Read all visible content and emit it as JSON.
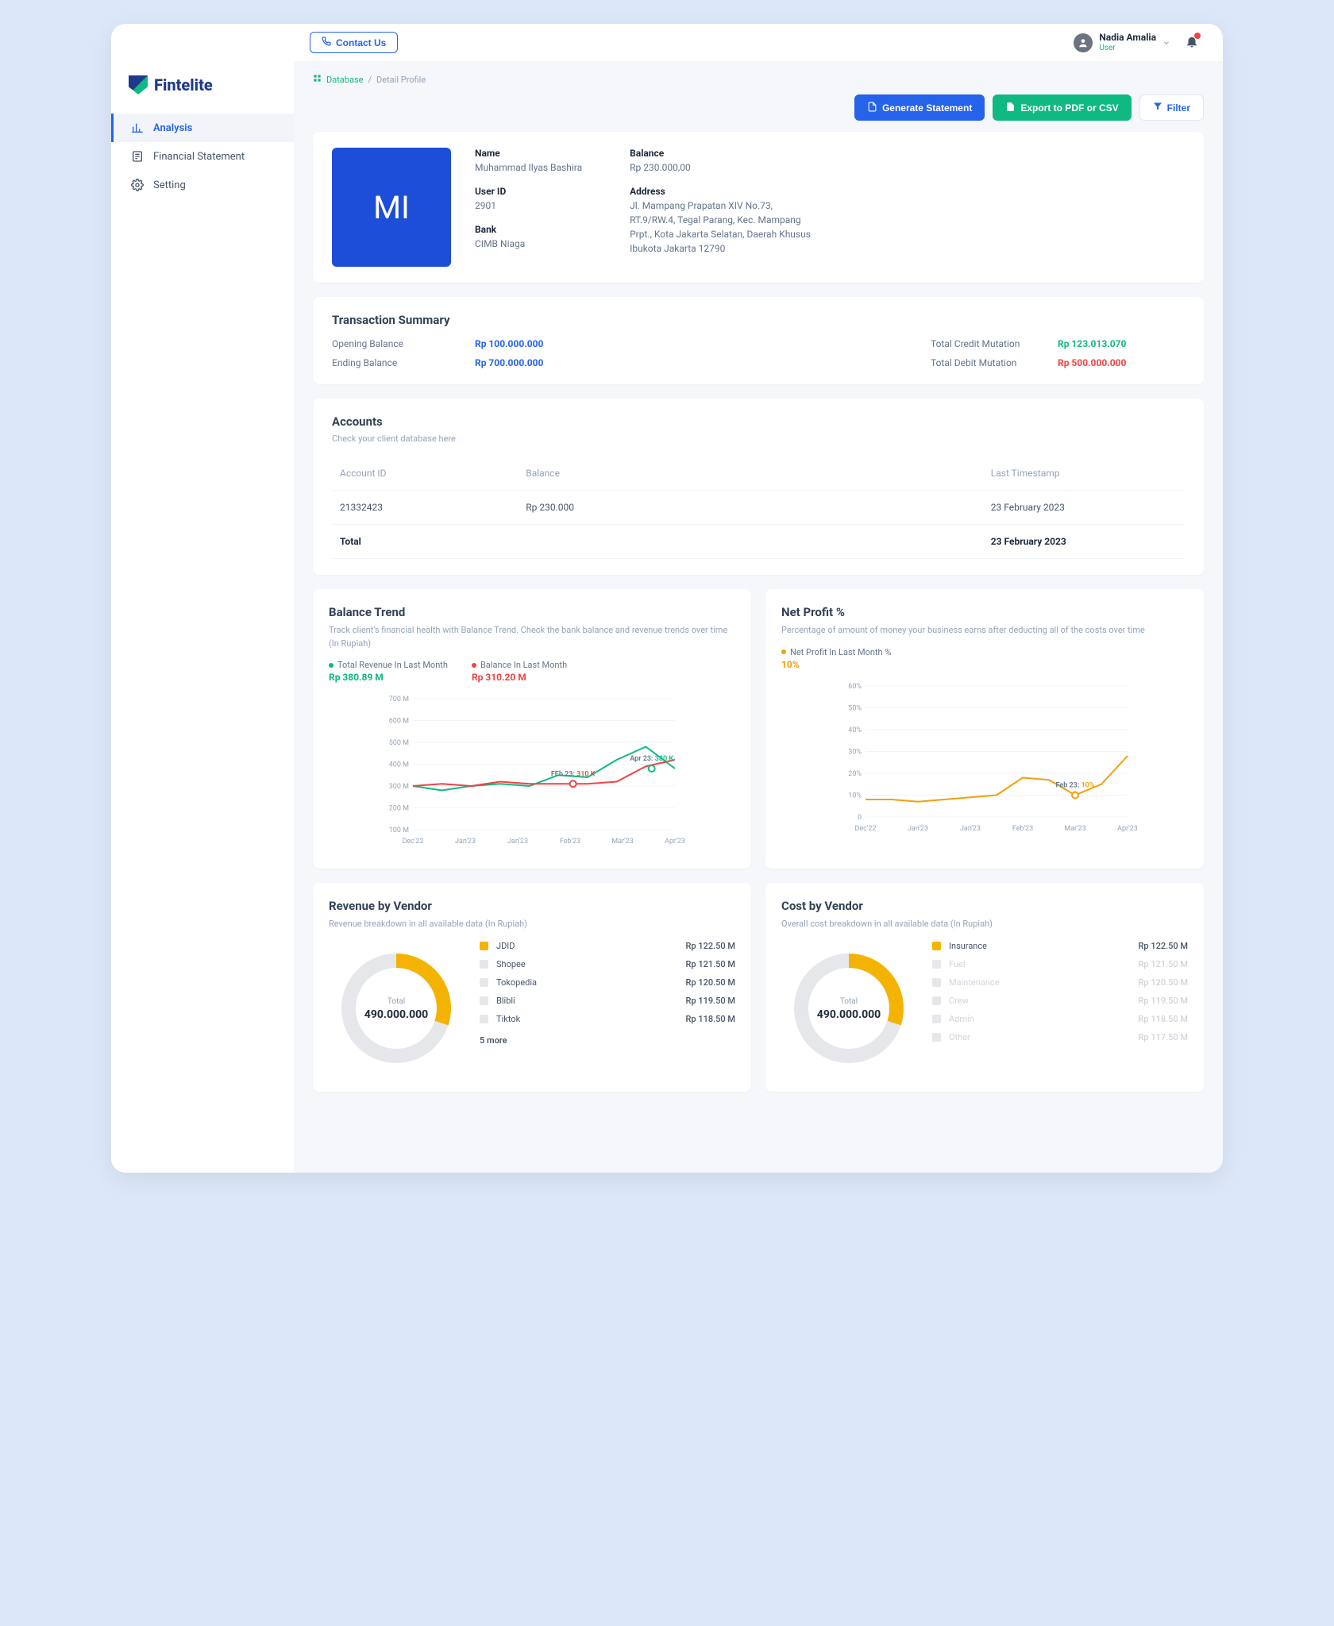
{
  "topbar": {
    "contact_label": "Contact Us",
    "user_name": "Nadia Amalia",
    "user_role": "User"
  },
  "logo_text": "Fintelite",
  "nav": [
    {
      "label": "Analysis",
      "active": true
    },
    {
      "label": "Financial Statement",
      "active": false
    },
    {
      "label": "Setting",
      "active": false
    }
  ],
  "breadcrumb": {
    "root": "Database",
    "current": "Detail Profile"
  },
  "actions": {
    "generate": "Generate Statement",
    "export": "Export to PDF or CSV",
    "filter": "Filter"
  },
  "profile": {
    "initials": "MI",
    "name_label": "Name",
    "name": "Muhammad Ilyas Bashira",
    "userid_label": "User ID",
    "userid": "2901",
    "bank_label": "Bank",
    "bank": "CIMB Niaga",
    "balance_label": "Balance",
    "balance": "Rp 230.000,00",
    "address_label": "Address",
    "address": "Jl. Mampang Prapatan XIV No.73, RT.9/RW.4, Tegal Parang, Kec. Mampang Prpt., Kota Jakarta Selatan, Daerah Khusus Ibukota Jakarta 12790"
  },
  "summary": {
    "title": "Transaction Summary",
    "rows": {
      "opening_label": "Opening Balance",
      "opening_val": "Rp 100.000.000",
      "ending_label": "Ending Balance",
      "ending_val": "Rp 700.000.000",
      "credit_label": "Total Credit Mutation",
      "credit_val": "Rp 123.013.070",
      "debit_label": "Total Debit Mutation",
      "debit_val": "Rp 500.000.000"
    }
  },
  "accounts": {
    "title": "Accounts",
    "subtitle": "Check your client database here",
    "cols": {
      "c1": "Account ID",
      "c2": "Balance",
      "c3": "Last Timestamp"
    },
    "rows": [
      {
        "id": "21332423",
        "balance": "Rp 230.000",
        "ts": "23 February 2023"
      }
    ],
    "total_label": "Total",
    "total_ts": "23 February 2023"
  },
  "balance_trend": {
    "title": "Balance Trend",
    "desc": "Track client's financial health with Balance Trend. Check the bank balance and revenue trends over time (In Rupiah)",
    "legend1_label": "Total Revenue In Last Month",
    "legend1_val": "Rp 380.89 M",
    "legend1_color": "#10b981",
    "legend2_label": "Balance In Last Month",
    "legend2_val": "Rp 310.20 M",
    "legend2_color": "#ef4444",
    "x_labels": [
      "Dec'22",
      "Jan'23",
      "Jan'23",
      "Feb'23",
      "Mar'23",
      "Apr'23"
    ],
    "y_labels": [
      "100 M",
      "200 M",
      "300 M",
      "400 M",
      "500 M",
      "600 M",
      "700 M"
    ],
    "y_min": 100,
    "y_max": 700,
    "series1": [
      300,
      280,
      300,
      310,
      300,
      350,
      340,
      420,
      480,
      380
    ],
    "series2": [
      300,
      310,
      300,
      320,
      310,
      310,
      310,
      320,
      390,
      420
    ],
    "annot1": {
      "text": "FEb 23:",
      "val": " 310 K",
      "color": "#ef4444",
      "xi": 5.5,
      "y": 310
    },
    "annot2": {
      "text": "Apr 23:",
      "val": " 380 K",
      "color": "#10b981",
      "xi": 8.2,
      "y": 380
    }
  },
  "net_profit": {
    "title": "Net Profit %",
    "desc": "Percentage of amount of money your business earns after deducting all of the costs over time",
    "legend_label": "Net Profit In Last Month %",
    "legend_val": "10%",
    "legend_color": "#f59e0b",
    "x_labels": [
      "Dec'22",
      "Jan'23",
      "Jan'23",
      "Feb'23",
      "Mar'23",
      "Apr'23"
    ],
    "y_labels": [
      "0",
      "10%",
      "20%",
      "30%",
      "40%",
      "50%",
      "60%"
    ],
    "y_min": 0,
    "y_max": 60,
    "series": [
      8,
      8,
      7,
      8,
      9,
      10,
      18,
      17,
      10,
      15,
      28
    ],
    "annot": {
      "text": "Feb 23:",
      "val": " 10%",
      "color": "#f59e0b",
      "xi": 8,
      "y": 10
    }
  },
  "revenue_vendor": {
    "title": "Revenue by Vendor",
    "desc": "Revenue breakdown in all available data (In Rupiah)",
    "center_label": "Total",
    "center_val": "490.000.000",
    "arc_color": "#f5b301",
    "arc_bg": "#e5e7eb",
    "arc_pct": 0.3,
    "items": [
      {
        "name": "JDID",
        "val": "Rp 122.50 M",
        "color": "#f5b301",
        "muted": false
      },
      {
        "name": "Shopee",
        "val": "Rp 121.50 M",
        "color": "#e5e7eb",
        "muted": false
      },
      {
        "name": "Tokopedia",
        "val": "Rp 120.50 M",
        "color": "#e5e7eb",
        "muted": false
      },
      {
        "name": "Blibli",
        "val": "Rp 119.50 M",
        "color": "#e5e7eb",
        "muted": false
      },
      {
        "name": "Tiktok",
        "val": "Rp 118.50 M",
        "color": "#e5e7eb",
        "muted": false
      }
    ],
    "more": "5 more"
  },
  "cost_vendor": {
    "title": "Cost by Vendor",
    "desc": "Overall cost breakdown in all available data (In Rupiah)",
    "center_label": "Total",
    "center_val": "490.000.000",
    "arc_color": "#f5b301",
    "arc_bg": "#e5e7eb",
    "arc_pct": 0.3,
    "items": [
      {
        "name": "Insurance",
        "val": "Rp 122.50 M",
        "color": "#f5b301",
        "muted": false
      },
      {
        "name": "Fuel",
        "val": "Rp 121.50 M",
        "color": "#e5e7eb",
        "muted": true
      },
      {
        "name": "Maintenance",
        "val": "Rp 120.50 M",
        "color": "#e5e7eb",
        "muted": true
      },
      {
        "name": "Crew",
        "val": "Rp 119.50 M",
        "color": "#e5e7eb",
        "muted": true
      },
      {
        "name": "Admin",
        "val": "Rp 118.50 M",
        "color": "#e5e7eb",
        "muted": true
      },
      {
        "name": "Other",
        "val": "Rp 117.50 M",
        "color": "#e5e7eb",
        "muted": true
      }
    ]
  }
}
